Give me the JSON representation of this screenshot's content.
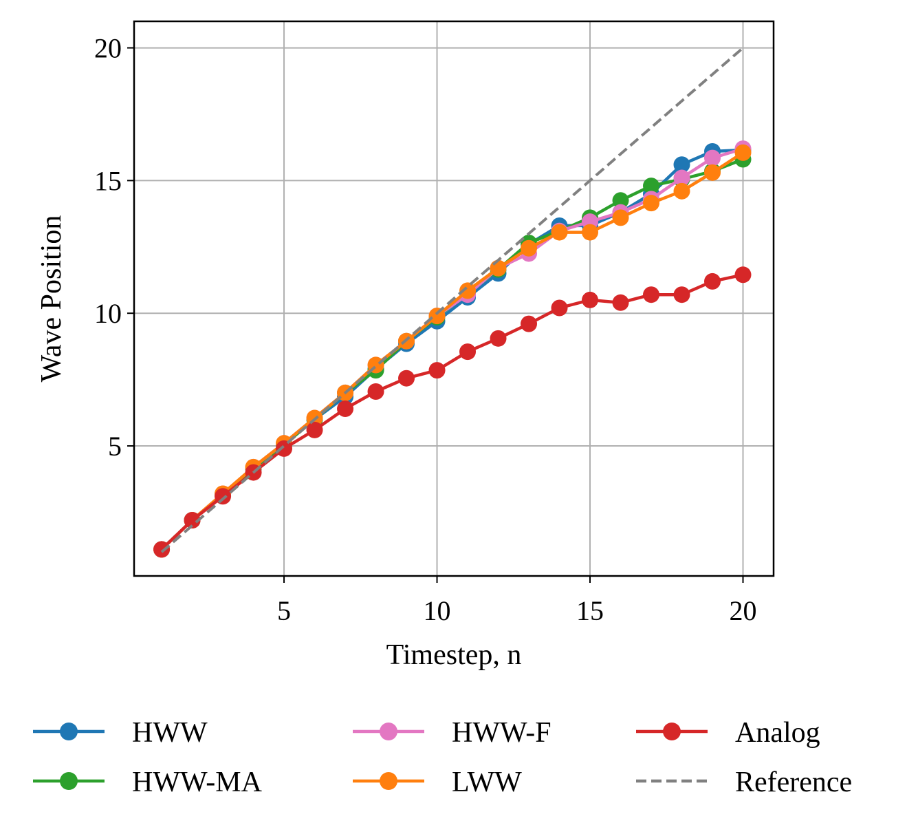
{
  "chart_data": {
    "type": "line",
    "xlabel": "Timestep, n",
    "ylabel": "Wave Position",
    "xlim": [
      0.1,
      21
    ],
    "ylim": [
      0.1,
      21
    ],
    "xticks": [
      5,
      10,
      15,
      20
    ],
    "yticks": [
      5,
      10,
      15,
      20
    ],
    "xtick_labels": [
      "5",
      "10",
      "15",
      "20"
    ],
    "ytick_labels": [
      "5",
      "10",
      "15",
      "20"
    ],
    "grid": true,
    "legend_position": "below",
    "x": [
      1,
      2,
      3,
      4,
      5,
      6,
      7,
      8,
      9,
      10,
      11,
      12,
      13,
      14,
      15,
      16,
      17,
      18,
      19,
      20
    ],
    "series": [
      {
        "name": "HWW",
        "color": "#1f77b4",
        "marker": "circle",
        "values": [
          1.1,
          2.2,
          3.15,
          4.15,
          5.05,
          6.0,
          6.85,
          7.9,
          8.85,
          9.7,
          10.6,
          11.5,
          12.6,
          13.3,
          13.3,
          13.8,
          14.5,
          15.6,
          16.1,
          16.15
        ]
      },
      {
        "name": "HWW-MA",
        "color": "#2ca02c",
        "marker": "circle",
        "values": [
          1.1,
          2.2,
          3.15,
          4.15,
          5.05,
          6.0,
          7.0,
          7.85,
          8.95,
          9.85,
          10.75,
          11.65,
          12.65,
          13.1,
          13.6,
          14.25,
          14.8,
          15.05,
          15.35,
          15.8
        ]
      },
      {
        "name": "HWW-F",
        "color": "#e377c2",
        "marker": "circle",
        "values": [
          1.1,
          2.2,
          3.2,
          4.2,
          5.1,
          6.05,
          7.0,
          8.05,
          8.95,
          9.9,
          10.7,
          11.7,
          12.25,
          13.1,
          13.45,
          13.8,
          14.3,
          15.1,
          15.85,
          16.2
        ]
      },
      {
        "name": "LWW",
        "color": "#ff7f0e",
        "marker": "circle",
        "values": [
          1.1,
          2.2,
          3.2,
          4.2,
          5.1,
          6.05,
          7.0,
          8.05,
          8.95,
          9.9,
          10.85,
          11.7,
          12.45,
          13.05,
          13.05,
          13.6,
          14.15,
          14.6,
          15.3,
          16.05
        ]
      },
      {
        "name": "Analog",
        "color": "#d62728",
        "marker": "circle",
        "values": [
          1.1,
          2.2,
          3.1,
          4.0,
          4.9,
          5.6,
          6.4,
          7.05,
          7.55,
          7.85,
          8.55,
          9.05,
          9.6,
          10.2,
          10.5,
          10.4,
          10.7,
          10.7,
          11.2,
          11.45
        ]
      },
      {
        "name": "Reference",
        "color": "#808080",
        "marker": "none",
        "dashed": true,
        "values": [
          1,
          2,
          3,
          4,
          5,
          6,
          7,
          8,
          9,
          10,
          11,
          12,
          13,
          14,
          15,
          16,
          17,
          18,
          19,
          20
        ]
      }
    ]
  }
}
